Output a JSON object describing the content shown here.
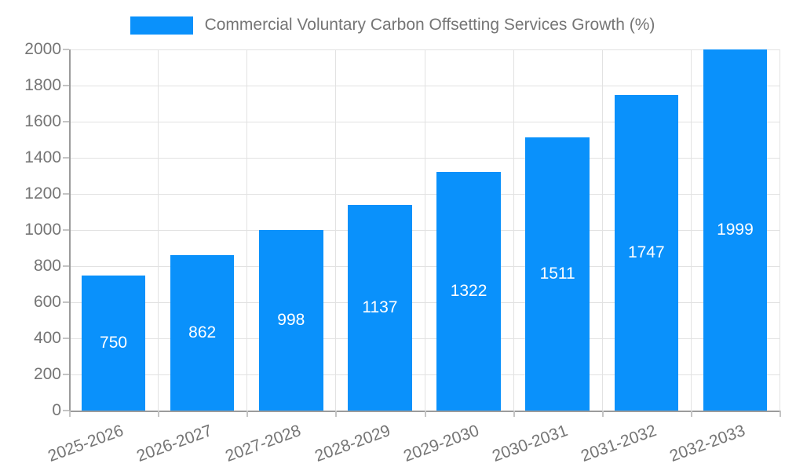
{
  "legend": {
    "swatch_icon": "legend-color-swatch"
  },
  "chart_data": {
    "type": "bar",
    "title": "Commercial Voluntary Carbon Offsetting Services Growth (%)",
    "categories": [
      "2025-2026",
      "2026-2027",
      "2027-2028",
      "2028-2029",
      "2029-2030",
      "2030-2031",
      "2031-2032",
      "2032-2033"
    ],
    "values": [
      750,
      862,
      998,
      1137,
      1322,
      1511,
      1747,
      1999
    ],
    "xlabel": "",
    "ylabel": "",
    "ylim": [
      0,
      2000
    ],
    "yticks": [
      0,
      200,
      400,
      600,
      800,
      1000,
      1200,
      1400,
      1600,
      1800,
      2000
    ],
    "grid": true,
    "legend_position": "top-center",
    "colors": {
      "bar": "#0a91fb",
      "value_label": "#ffffff",
      "axis_text": "#757575",
      "grid_line": "#e2e2e2",
      "axis_line": "#9b9b9b",
      "tick_mark": "#c4c4c4",
      "background": "#ffffff"
    }
  }
}
